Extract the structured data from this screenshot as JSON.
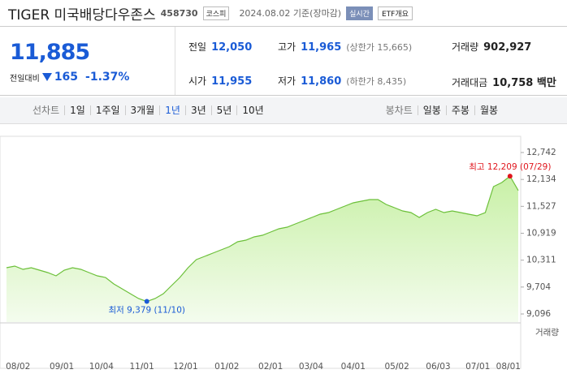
{
  "header": {
    "name": "TIGER 미국배당다우존스",
    "code": "458730",
    "market": "코스피",
    "date": "2024.08.02 기준(장마감)",
    "realtime": "실시간",
    "overview": "ETF개요"
  },
  "quote": {
    "price": "11,885",
    "change_label": "전일대비",
    "change": "165",
    "change_rate": "-1.37%"
  },
  "table": {
    "rows": [
      [
        "전일",
        "12,050",
        "고가",
        "11,965",
        "(상한가 15,665)",
        "거래량",
        "902,927"
      ],
      [
        "시가",
        "11,955",
        "저가",
        "11,860",
        "(하한가 8,435)",
        "거래대금",
        "10,758 백만"
      ]
    ]
  },
  "tabs": {
    "line_label": "선차트",
    "line_periods": [
      "1일",
      "1주일",
      "3개월",
      "1년",
      "3년",
      "5년",
      "10년"
    ],
    "selected": "1년",
    "candle_label": "봉차트",
    "candle_periods": [
      "일봉",
      "주봉",
      "월봉"
    ]
  },
  "chart_data": {
    "type": "line",
    "series": [
      {
        "name": "종가",
        "color": "#6cc03a",
        "values": [
          10140,
          10177,
          10104,
          10140,
          10085,
          10030,
          9957,
          10085,
          10140,
          10104,
          10030,
          9957,
          9920,
          9774,
          9664,
          9554,
          9444,
          9379,
          9444,
          9554,
          9737,
          9920,
          10140,
          10323,
          10397,
          10470,
          10543,
          10617,
          10727,
          10763,
          10836,
          10873,
          10946,
          11020,
          11056,
          11130,
          11203,
          11276,
          11349,
          11386,
          11459,
          11533,
          11606,
          11643,
          11679,
          11679,
          11569,
          11496,
          11423,
          11386,
          11276,
          11386,
          11459,
          11386,
          11423,
          11386,
          11349,
          11313,
          11386,
          11972,
          12064,
          12209,
          11885
        ]
      }
    ],
    "xticks": [
      {
        "value": 1.4,
        "label": "08/02"
      },
      {
        "value": 6.7,
        "label": "09/01"
      },
      {
        "value": 11.5,
        "label": "10/04"
      },
      {
        "value": 16.4,
        "label": "11/01"
      },
      {
        "value": 21.7,
        "label": "12/01"
      },
      {
        "value": 26.7,
        "label": "01/02"
      },
      {
        "value": 32,
        "label": "02/01"
      },
      {
        "value": 36.9,
        "label": "03/04"
      },
      {
        "value": 42,
        "label": "04/01"
      },
      {
        "value": 47.3,
        "label": "05/02"
      },
      {
        "value": 52.3,
        "label": "06/03"
      },
      {
        "value": 57.1,
        "label": "07/01"
      },
      {
        "value": 60.8,
        "label": "08/01"
      }
    ],
    "xlim": [
      0,
      62
    ],
    "ylim": [
      9096,
      12742
    ],
    "yticks": [
      {
        "value": 9096,
        "label": "9,096"
      },
      {
        "value": 9704,
        "label": "9,704"
      },
      {
        "value": 10311,
        "label": "10,311"
      },
      {
        "value": 10919,
        "label": "10,919"
      },
      {
        "value": 11527,
        "label": "11,527"
      },
      {
        "value": 12134,
        "label": "12,134"
      },
      {
        "value": 12742,
        "label": "12,742"
      }
    ],
    "annotations": [
      {
        "index": 61,
        "value": 12209,
        "label": "최고 12,209 (07/29)",
        "color": "#e0161d"
      },
      {
        "index": 17,
        "value": 9379,
        "label": "최저 9,379 (11/10)",
        "color": "#1a5bd6"
      }
    ],
    "volume_label": "거래량"
  }
}
